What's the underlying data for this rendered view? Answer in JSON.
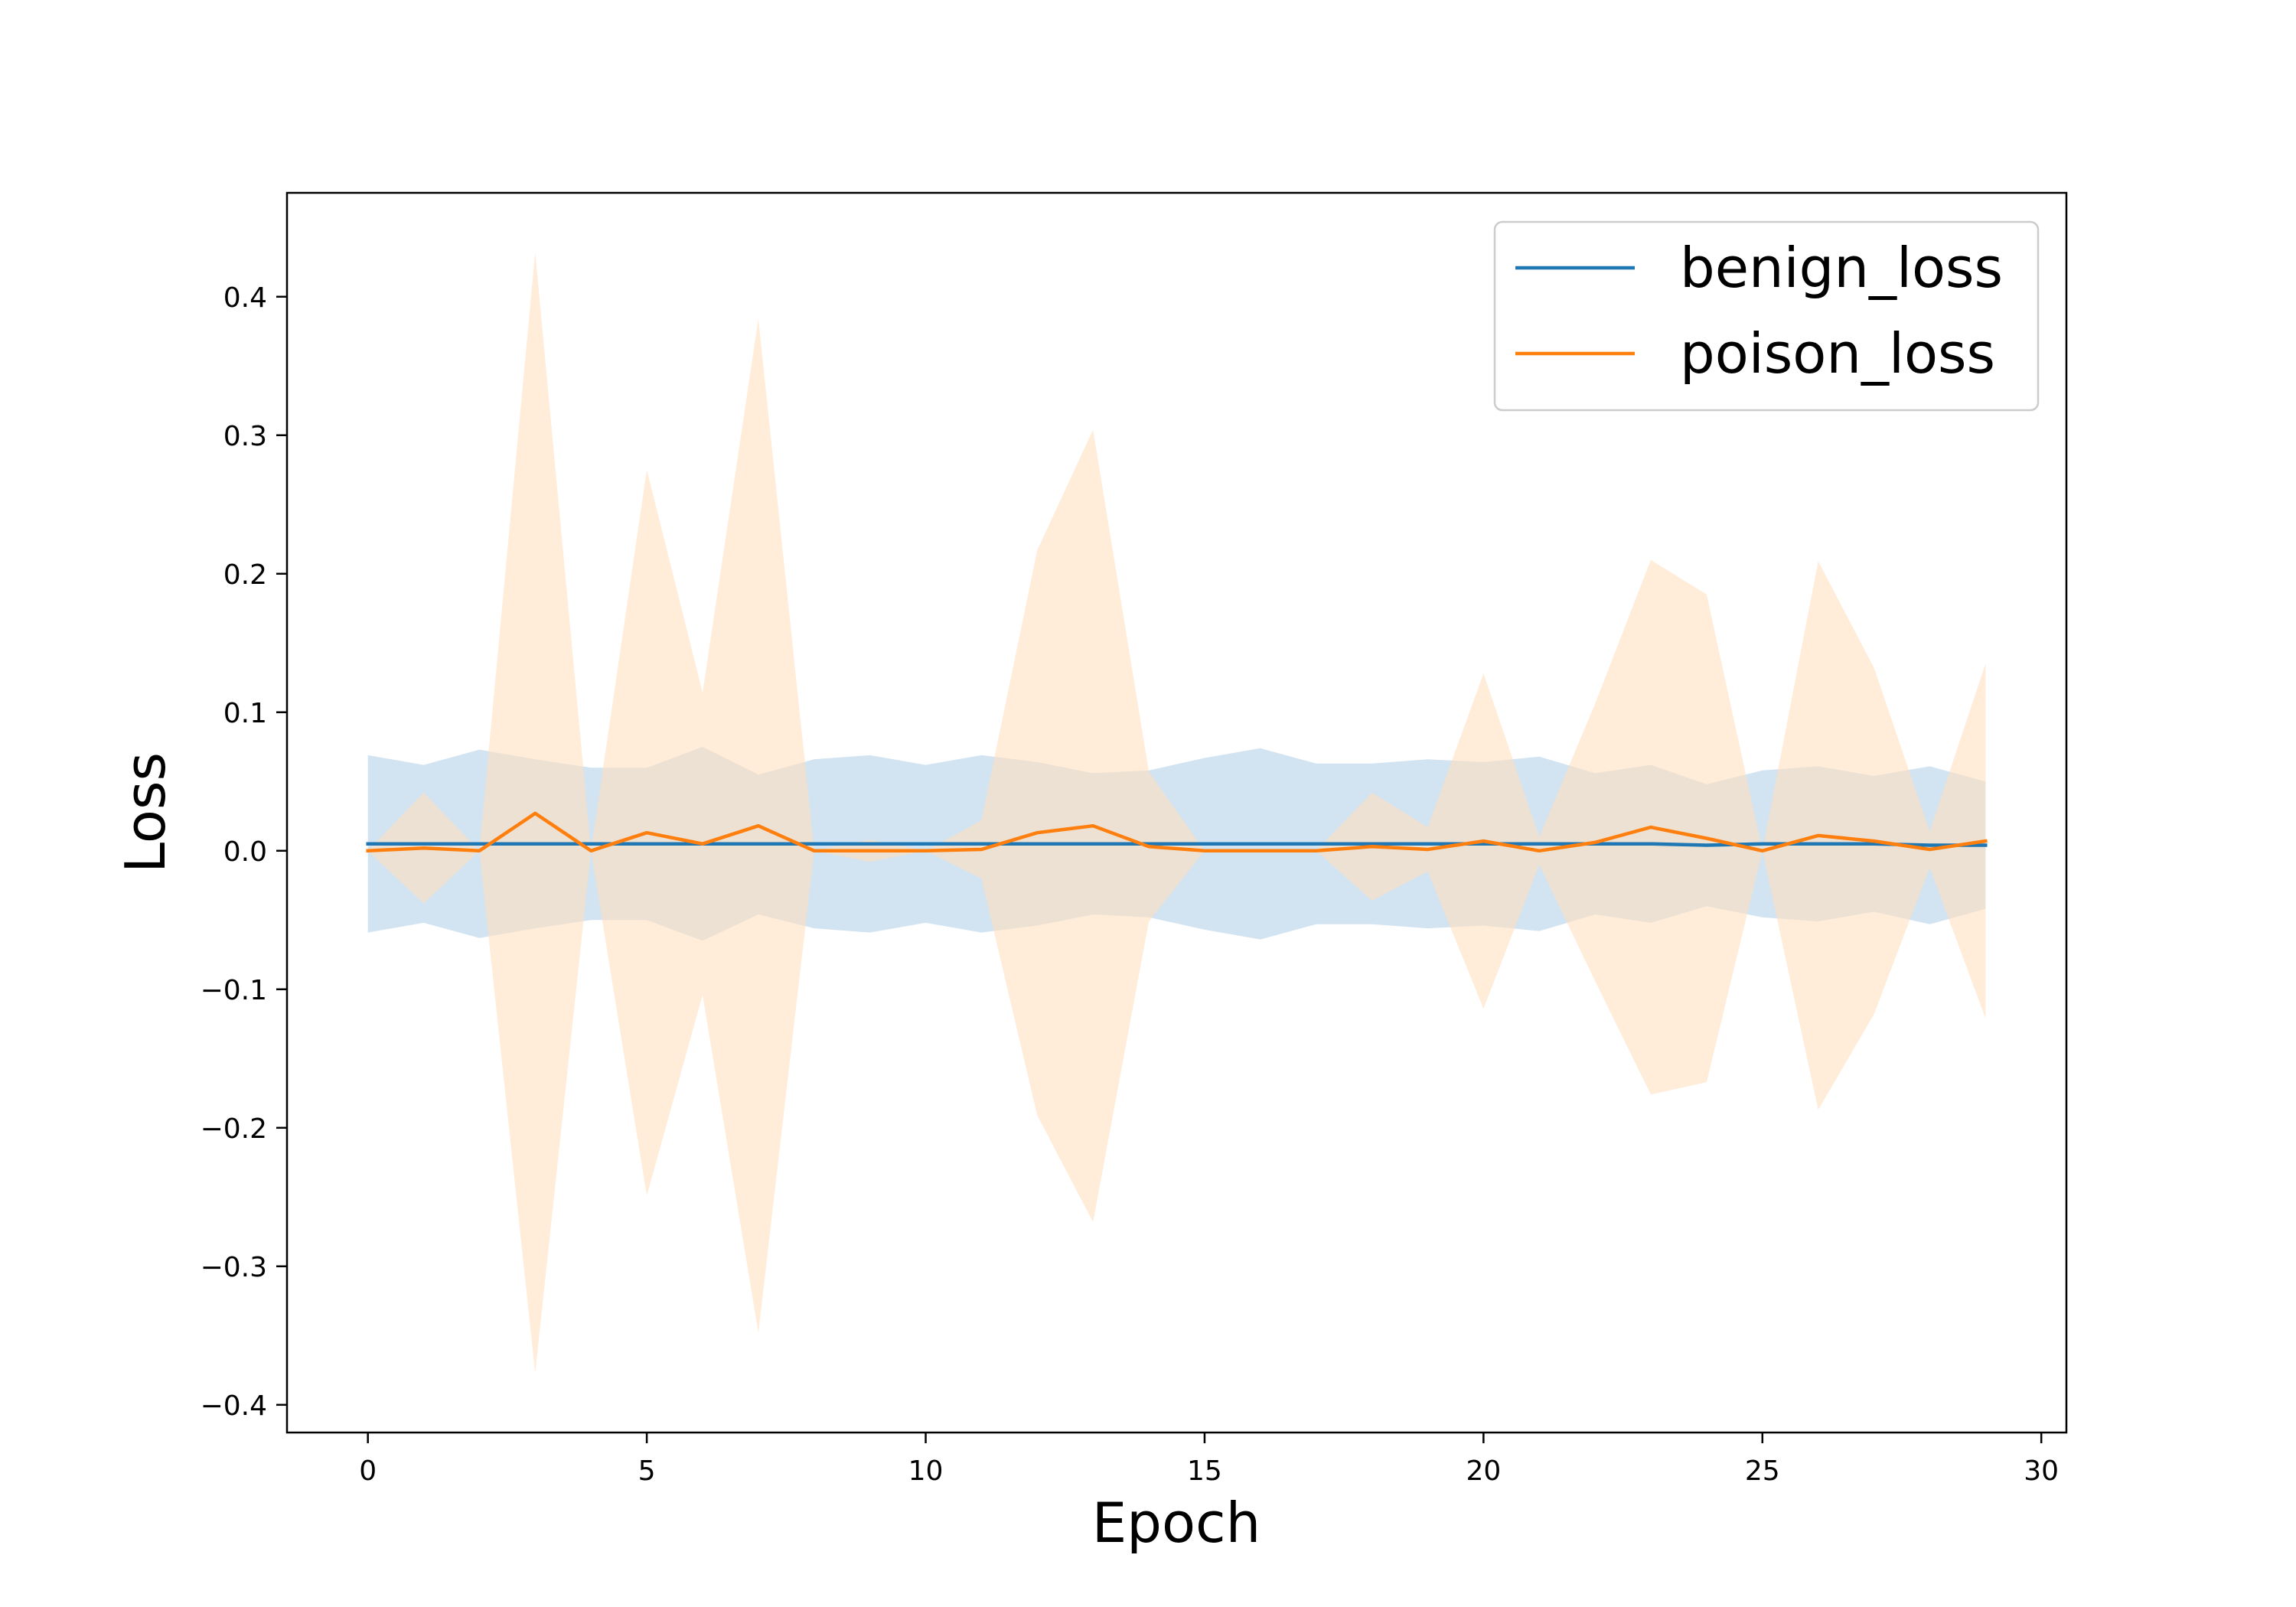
{
  "chart_data": {
    "type": "line",
    "xlabel": "Epoch",
    "ylabel": "Loss",
    "xlim": [
      -1.45,
      30.45
    ],
    "ylim": [
      -0.42,
      0.475
    ],
    "xticks": [
      0,
      5,
      10,
      15,
      20,
      25,
      30
    ],
    "yticks": [
      -0.4,
      -0.3,
      -0.2,
      -0.1,
      0.0,
      0.1,
      0.2,
      0.3,
      0.4
    ],
    "xtick_labels": [
      "0",
      "5",
      "10",
      "15",
      "20",
      "25",
      "30"
    ],
    "ytick_labels": [
      "−0.4",
      "−0.3",
      "−0.2",
      "−0.1",
      "0.0",
      "0.1",
      "0.2",
      "0.3",
      "0.4"
    ],
    "grid": false,
    "legend_position": "top-right",
    "x": [
      0,
      1,
      2,
      3,
      4,
      5,
      6,
      7,
      8,
      9,
      10,
      11,
      12,
      13,
      14,
      15,
      16,
      17,
      18,
      19,
      20,
      21,
      22,
      23,
      24,
      25,
      26,
      27,
      28,
      29
    ],
    "series": [
      {
        "name": "benign_loss",
        "color": "#1f77b4",
        "band_color": "#a6c8e3",
        "values": [
          0.005,
          0.005,
          0.005,
          0.005,
          0.005,
          0.005,
          0.005,
          0.005,
          0.005,
          0.005,
          0.005,
          0.005,
          0.005,
          0.005,
          0.005,
          0.005,
          0.005,
          0.005,
          0.005,
          0.005,
          0.005,
          0.005,
          0.005,
          0.005,
          0.004,
          0.005,
          0.005,
          0.005,
          0.004,
          0.004
        ],
        "lower": [
          -0.059,
          -0.052,
          -0.063,
          -0.056,
          -0.05,
          -0.05,
          -0.065,
          -0.046,
          -0.056,
          -0.059,
          -0.052,
          -0.059,
          -0.054,
          -0.046,
          -0.048,
          -0.057,
          -0.064,
          -0.053,
          -0.053,
          -0.056,
          -0.054,
          -0.058,
          -0.046,
          -0.052,
          -0.04,
          -0.048,
          -0.051,
          -0.044,
          -0.053,
          -0.042
        ],
        "upper": [
          0.069,
          0.062,
          0.073,
          0.066,
          0.06,
          0.06,
          0.075,
          0.055,
          0.066,
          0.069,
          0.062,
          0.069,
          0.064,
          0.056,
          0.058,
          0.067,
          0.074,
          0.063,
          0.063,
          0.066,
          0.064,
          0.068,
          0.056,
          0.062,
          0.048,
          0.058,
          0.061,
          0.054,
          0.061,
          0.05
        ]
      },
      {
        "name": "poison_loss",
        "color": "#ff7f0e",
        "band_color": "#ffdfbf",
        "values": [
          0.0,
          0.002,
          0.0,
          0.027,
          0.0,
          0.013,
          0.005,
          0.018,
          0.0,
          0.0,
          0.0,
          0.001,
          0.013,
          0.018,
          0.003,
          0.0,
          0.0,
          0.0,
          0.003,
          0.001,
          0.007,
          0.0,
          0.006,
          0.017,
          0.009,
          0.0,
          0.011,
          0.007,
          0.001,
          0.007
        ],
        "lower": [
          0.0,
          -0.038,
          0.0,
          -0.377,
          0.0,
          -0.249,
          -0.104,
          -0.348,
          0.0,
          -0.008,
          0.0,
          -0.02,
          -0.191,
          -0.268,
          -0.051,
          0.0,
          0.0,
          0.0,
          -0.036,
          -0.015,
          -0.114,
          -0.01,
          -0.094,
          -0.176,
          -0.167,
          0.0,
          -0.187,
          -0.118,
          -0.012,
          -0.121
        ],
        "upper": [
          0.0,
          0.042,
          0.0,
          0.432,
          0.0,
          0.275,
          0.114,
          0.384,
          0.0,
          0.008,
          0.0,
          0.022,
          0.217,
          0.304,
          0.057,
          0.0,
          0.0,
          0.0,
          0.042,
          0.017,
          0.128,
          0.01,
          0.106,
          0.21,
          0.185,
          0.0,
          0.209,
          0.132,
          0.014,
          0.135
        ]
      }
    ]
  }
}
